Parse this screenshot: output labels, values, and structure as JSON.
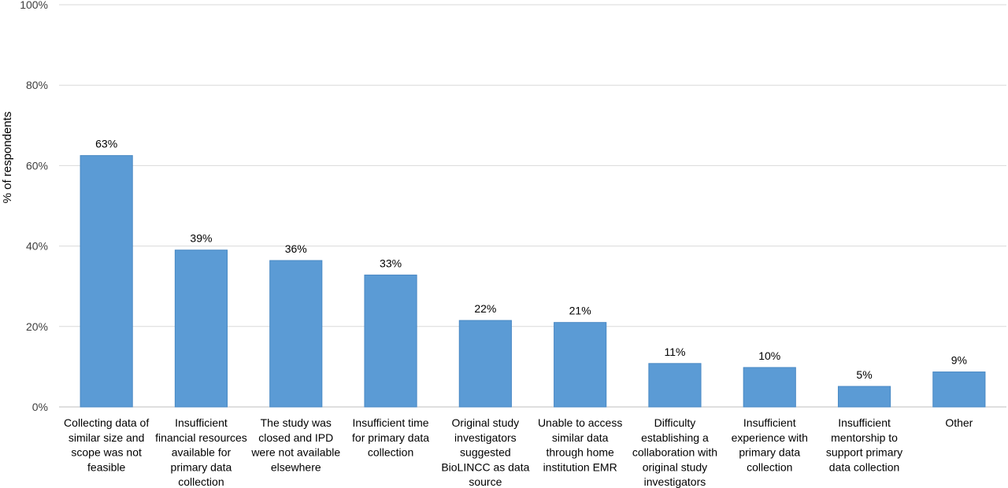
{
  "chart_data": {
    "type": "bar",
    "title": "",
    "xlabel": "",
    "ylabel": "% of respondents",
    "ylim": [
      0,
      100
    ],
    "yticks": [
      "0%",
      "20%",
      "40%",
      "60%",
      "80%",
      "100%"
    ],
    "grid": true,
    "bar_color": "#5b9bd5",
    "categories": [
      [
        "Collecting data of",
        "similar size and",
        "scope was not",
        "feasible"
      ],
      [
        "Insufficient",
        "financial resources",
        "available for",
        "primary data",
        "collection"
      ],
      [
        "The study was",
        "closed and IPD",
        "were not available",
        "elsewhere"
      ],
      [
        "Insufficient time",
        "for primary data",
        "collection"
      ],
      [
        "Original study",
        "investigators",
        "suggested",
        "BioLINCC as data",
        "source"
      ],
      [
        "Unable to access",
        "similar data",
        "through home",
        "institution EMR"
      ],
      [
        "Difficulty",
        "establishing a",
        "collaboration with",
        "original study",
        "investigators"
      ],
      [
        "Insufficient",
        "experience with",
        "primary data",
        "collection"
      ],
      [
        "Insufficient",
        "mentorship to",
        "support primary",
        "data collection"
      ],
      [
        "Other"
      ]
    ],
    "values": [
      62.5,
      39,
      36.4,
      32.8,
      21.5,
      21,
      10.8,
      9.8,
      5.1,
      8.7
    ],
    "data_labels": [
      "63%",
      "39%",
      "36%",
      "33%",
      "22%",
      "21%",
      "11%",
      "10%",
      "5%",
      "9%"
    ]
  }
}
